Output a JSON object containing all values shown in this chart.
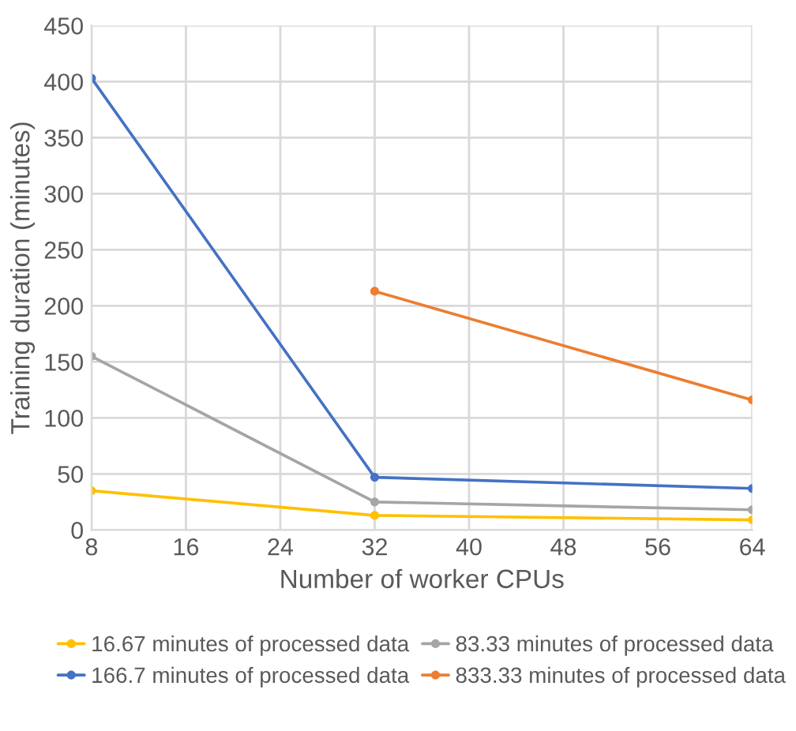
{
  "chart_data": {
    "type": "line",
    "xlabel": "Number of worker CPUs",
    "ylabel": "Training duration (minutes)",
    "xlim": [
      8,
      64
    ],
    "xticks": [
      8,
      16,
      24,
      32,
      40,
      48,
      56,
      64
    ],
    "ylim": [
      0,
      450
    ],
    "yticks": [
      0,
      50,
      100,
      150,
      200,
      250,
      300,
      350,
      400,
      450
    ],
    "grid": true,
    "legend": "bottom",
    "marker": "circle",
    "line_style": "solid",
    "series": [
      {
        "name": "16.67 minutes of processed data",
        "color": "#ffc000",
        "x": [
          8,
          32,
          64
        ],
        "values": [
          35,
          13,
          9
        ]
      },
      {
        "name": "83.33 minutes of processed data",
        "color": "#a5a5a5",
        "x": [
          8,
          32,
          64
        ],
        "values": [
          155,
          25,
          18
        ]
      },
      {
        "name": "166.7 minutes of processed data",
        "color": "#4472c4",
        "x": [
          8,
          32,
          64
        ],
        "values": [
          403,
          47,
          37
        ]
      },
      {
        "name": "833.33 minutes of processed data",
        "color": "#ed7d31",
        "x": [
          32,
          64
        ],
        "values": [
          213,
          116
        ]
      }
    ]
  }
}
